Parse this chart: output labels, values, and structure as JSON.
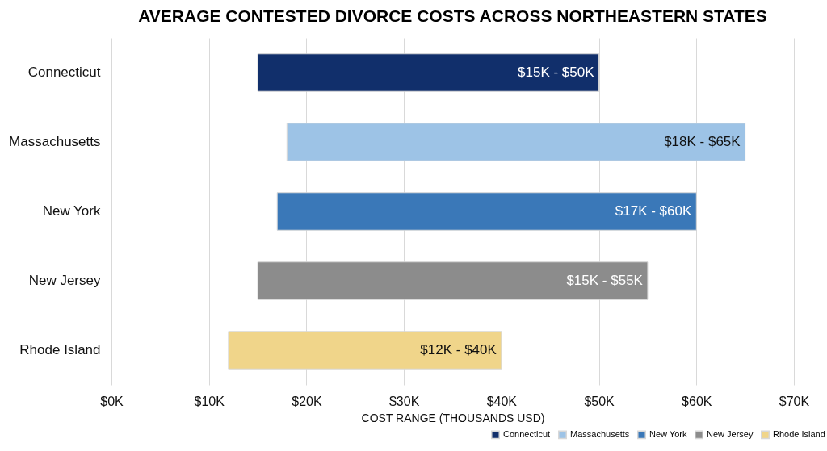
{
  "chart_data": {
    "type": "bar",
    "orientation": "horizontal",
    "title": "AVERAGE CONTESTED DIVORCE COSTS ACROSS NORTHEASTERN STATES",
    "xlabel": "COST RANGE (THOUSANDS USD)",
    "categories": [
      "Connecticut",
      "Massachusetts",
      "New York",
      "New Jersey",
      "Rhode Island"
    ],
    "series": [
      {
        "name": "Connecticut",
        "color": "#112f6b",
        "base": [
          15,
          null,
          null,
          null,
          null
        ],
        "values": [
          35,
          null,
          null,
          null,
          null
        ]
      },
      {
        "name": "Massachusetts",
        "color": "#9dc3e6",
        "base": [
          null,
          18,
          null,
          null,
          null
        ],
        "values": [
          null,
          47,
          null,
          null,
          null
        ]
      },
      {
        "name": "New York",
        "color": "#3a78b8",
        "base": [
          null,
          null,
          17,
          null,
          null
        ],
        "values": [
          null,
          null,
          43,
          null,
          null
        ]
      },
      {
        "name": "New Jersey",
        "color": "#8c8c8c",
        "base": [
          null,
          null,
          null,
          15,
          null
        ],
        "values": [
          null,
          null,
          null,
          40,
          null
        ]
      },
      {
        "name": "Rhode Island",
        "color": "#f0d58a",
        "base": [
          null,
          null,
          null,
          null,
          12
        ],
        "values": [
          null,
          null,
          null,
          null,
          28
        ]
      }
    ],
    "annotations": [
      {
        "text": "$15K - $50K",
        "x": 50,
        "y": "Connecticut"
      },
      {
        "text": "$18K - $65K",
        "x": 65,
        "y": "Massachusetts"
      },
      {
        "text": "$17K - $60K",
        "x": 60,
        "y": "New York"
      },
      {
        "text": "$15K - $55K",
        "x": 55,
        "y": "New Jersey"
      },
      {
        "text": "$12K - $40K",
        "x": 40,
        "y": "Rhode Island"
      }
    ],
    "xlim": [
      0,
      70
    ],
    "xticks": [
      {
        "value": 0,
        "label": "$0K"
      },
      {
        "value": 10,
        "label": "$10K"
      },
      {
        "value": 20,
        "label": "$20K"
      },
      {
        "value": 30,
        "label": "$30K"
      },
      {
        "value": 40,
        "label": "$40K"
      },
      {
        "value": 50,
        "label": "$50K"
      },
      {
        "value": 60,
        "label": "$60K"
      },
      {
        "value": 70,
        "label": "$70K"
      }
    ],
    "grid": "x",
    "legend": "bottom right"
  }
}
